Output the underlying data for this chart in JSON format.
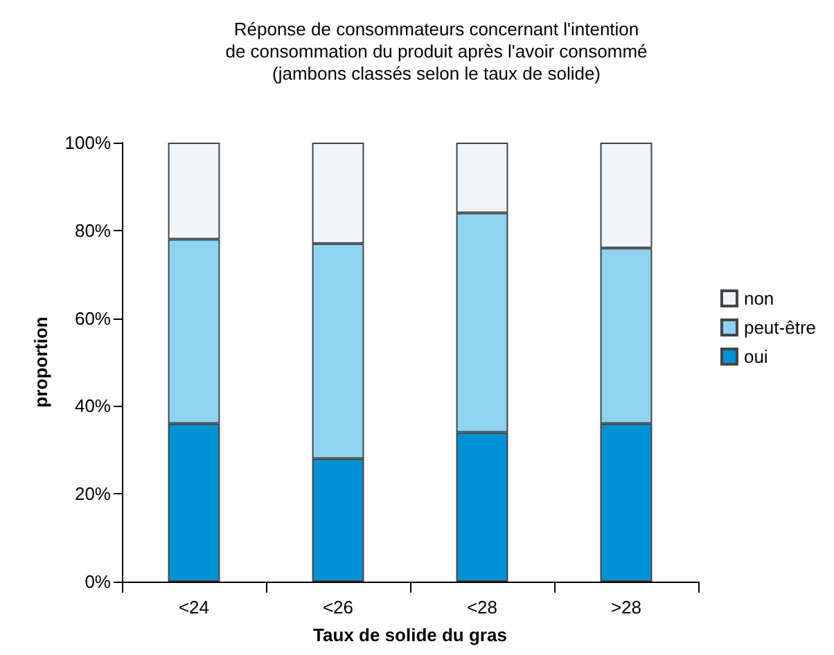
{
  "chart_data": {
    "type": "bar",
    "stacked": true,
    "title": "Réponse de consommateurs concernant l'intention\nde consommation du produit après l'avoir consommé\n(jambons classés selon le taux de solide)",
    "xlabel": "Taux de solide du gras",
    "ylabel": "proportion",
    "categories": [
      "<24",
      "<26",
      "<28",
      ">28"
    ],
    "series": [
      {
        "name": "oui",
        "color": "#0092d2",
        "values": [
          36,
          28,
          34,
          36
        ]
      },
      {
        "name": "peut-être",
        "color": "#8ed4f2",
        "values": [
          42,
          49,
          50,
          40
        ]
      },
      {
        "name": "non",
        "color": "#eef6fc",
        "values": [
          22,
          23,
          16,
          24
        ]
      }
    ],
    "ylim": [
      0,
      100
    ],
    "yticks": [
      {
        "value": 0,
        "label": "0%"
      },
      {
        "value": 20,
        "label": "20%"
      },
      {
        "value": 40,
        "label": "40%"
      },
      {
        "value": 60,
        "label": "60%"
      },
      {
        "value": 80,
        "label": "80%"
      },
      {
        "value": 100,
        "label": "100%"
      }
    ],
    "grid": false,
    "legend": "right"
  }
}
